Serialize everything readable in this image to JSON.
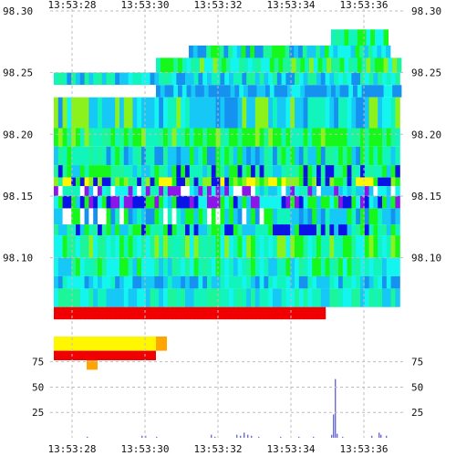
{
  "chart_data": [
    {
      "type": "heatmap",
      "title": "",
      "xlabel": "",
      "ylabel": "",
      "x_ticks": [
        "13:53:28",
        "13:53:30",
        "13:53:32",
        "13:53:34",
        "13:53:36"
      ],
      "x_range": [
        "13:53:27.4",
        "13:53:37.1"
      ],
      "y_ticks": [
        98.1,
        98.15,
        98.2,
        98.25,
        98.3
      ],
      "y_range": [
        98.045,
        98.3
      ],
      "grid": true,
      "color_scale": [
        "#0000cc",
        "#0055ff",
        "#00aaff",
        "#00ffff",
        "#00ff99",
        "#00ff00",
        "#aaff00",
        "#ffff00",
        "#ffaa00",
        "#ff0000"
      ],
      "colors": {
        "blue": "#0a14e6",
        "mid_blue": "#1591f0",
        "sky": "#16c8f5",
        "cyan": "#13f5ee",
        "aqua": "#11f5bd",
        "mint": "#1df59a",
        "green": "#16f81c",
        "yellow_green": "#8cf21b",
        "yellow": "#fff700",
        "orange": "#ffa500",
        "red": "#f00000",
        "violet": "#8c16e8",
        "white": "#ffffff"
      }
    },
    {
      "type": "bar",
      "title": "",
      "xlabel": "",
      "ylabel": "",
      "x_ticks": [
        "13:53:28",
        "13:53:30",
        "13:53:32",
        "13:53:34",
        "13:53:36"
      ],
      "y_ticks": [
        25,
        50,
        75
      ],
      "ylim": [
        0,
        90
      ],
      "grid": true,
      "color": "#6b6bd6",
      "values": [
        {
          "t": "13:53:28.4",
          "v": 1
        },
        {
          "t": "13:53:29.9",
          "v": 2
        },
        {
          "t": "13:53:30.0",
          "v": 2
        },
        {
          "t": "13:53:30.3",
          "v": 1
        },
        {
          "t": "13:53:31.8",
          "v": 3
        },
        {
          "t": "13:53:31.9",
          "v": 1
        },
        {
          "t": "13:53:32.5",
          "v": 3
        },
        {
          "t": "13:53:32.6",
          "v": 2
        },
        {
          "t": "13:53:32.7",
          "v": 5
        },
        {
          "t": "13:53:32.8",
          "v": 3
        },
        {
          "t": "13:53:32.9",
          "v": 2
        },
        {
          "t": "13:53:33.1",
          "v": 1
        },
        {
          "t": "13:53:33.7",
          "v": 1
        },
        {
          "t": "13:53:34.2",
          "v": 1
        },
        {
          "t": "13:53:34.6",
          "v": 1
        },
        {
          "t": "13:53:35.1",
          "v": 3
        },
        {
          "t": "13:53:35.15",
          "v": 23
        },
        {
          "t": "13:53:35.2",
          "v": 58
        },
        {
          "t": "13:53:35.25",
          "v": 4
        },
        {
          "t": "13:53:35.4",
          "v": 1
        },
        {
          "t": "13:53:36.2",
          "v": 2
        },
        {
          "t": "13:53:36.4",
          "v": 5
        },
        {
          "t": "13:53:36.45",
          "v": 3
        },
        {
          "t": "13:53:36.6",
          "v": 2
        }
      ]
    }
  ]
}
